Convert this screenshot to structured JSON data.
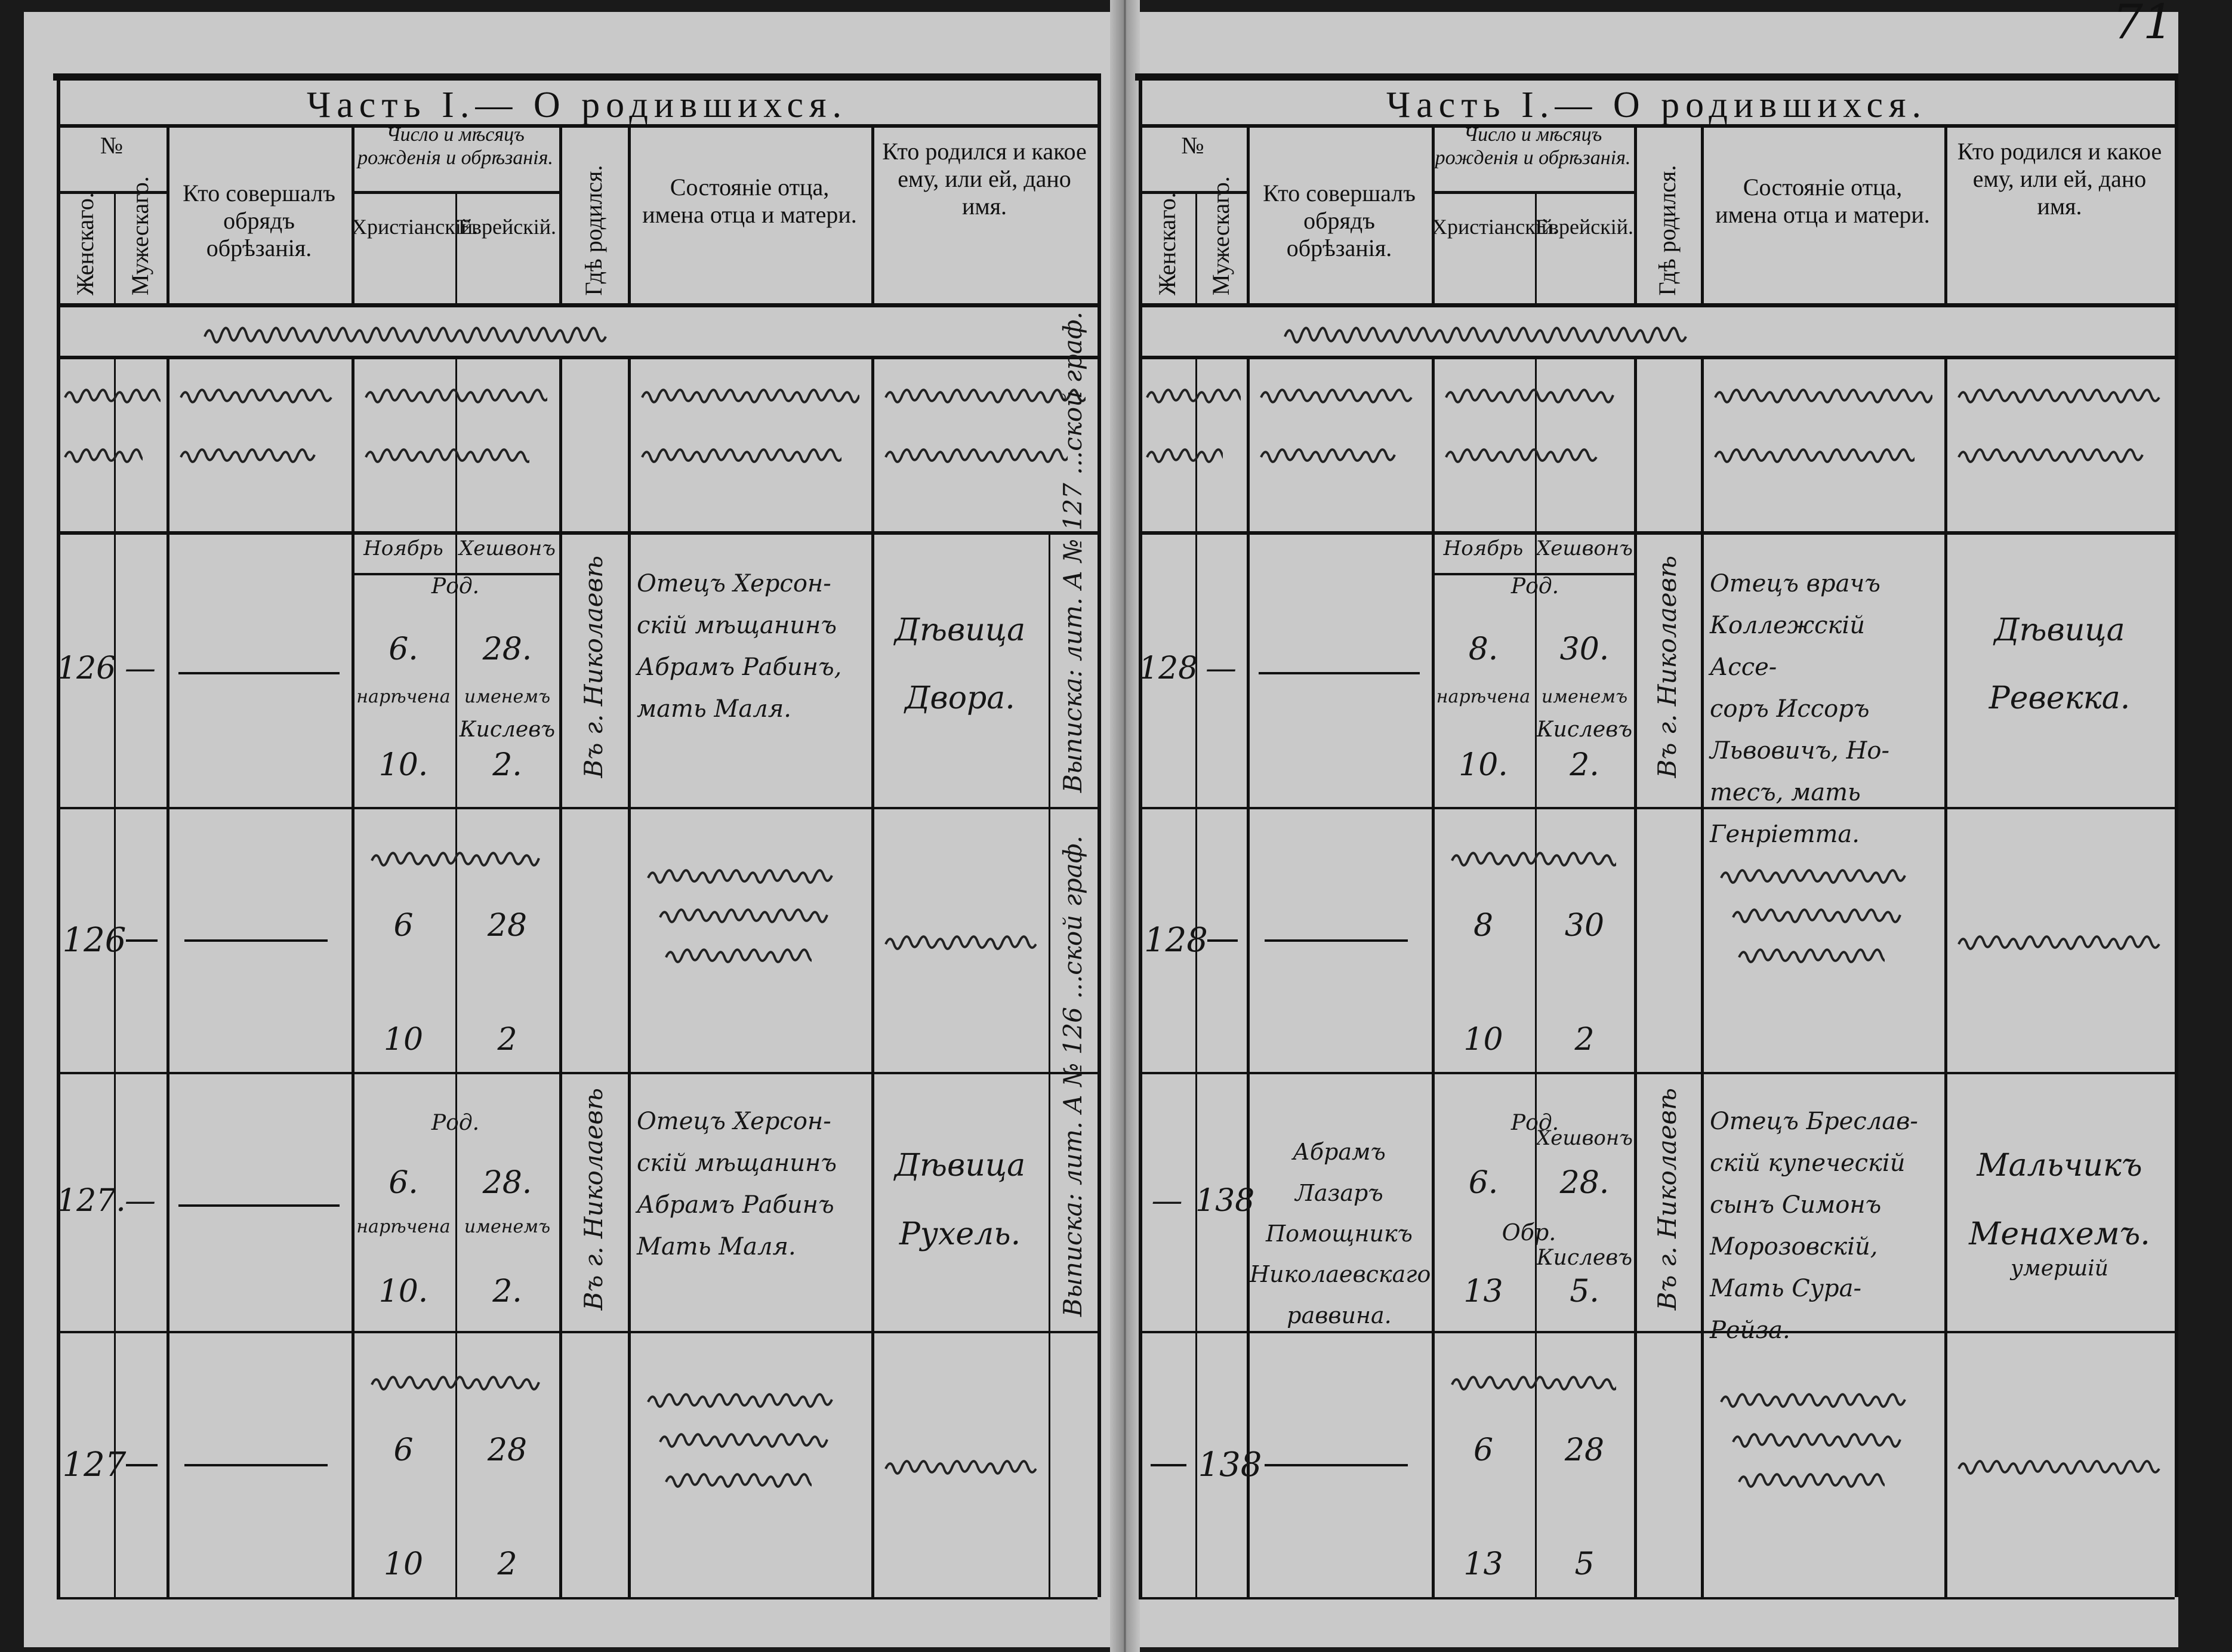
{
  "page_number": "71",
  "colors": {
    "paper": "#c9c9c9",
    "ink": "#111111",
    "background": "#1a1a1a"
  },
  "header": {
    "title": "Часть I.— О родившихся.",
    "no_label": "№",
    "female": "Женскаго.",
    "male": "Мужескаго.",
    "performer": "Кто совершалъ обрядъ обрѣзанія.",
    "dates": "Число и мѣсяцъ рожденія и обрѣзанія.",
    "christian": "Христіанскій.",
    "jewish": "Еврейскій.",
    "place": "Гдѣ родился.",
    "parents": "Состояніе отца, имена отца и матери.",
    "child": "Кто родился и какое ему, или ей, дано имя."
  },
  "pages": [
    {
      "records": [
        {
          "female": "126",
          "male": "—",
          "performer": "—",
          "month_christian": "Ноябрь",
          "month_jewish": "Хешвонъ",
          "birth_label": "Род.",
          "birth_christian": "6.",
          "birth_jewish": "28.",
          "naming_christian": "нарѣчена",
          "naming_jewish": "именемъ",
          "circ_month_jewish": "Кислевъ",
          "circ_christian": "10.",
          "circ_jewish": "2.",
          "place": "Въ г. Николаевѣ",
          "parents": "Отецъ Херсон-\nскій мѣщанинъ\nАбрамъ Рабинъ,\nмать Маля.",
          "child": "Дѣвица\nДвора.",
          "note": "Выписка: лит. А № 127 ...ской граф."
        },
        {
          "female": "127.",
          "male": "—",
          "performer": "—",
          "birth_label": "Род.",
          "birth_christian": "6.",
          "birth_jewish": "28.",
          "naming_christian": "нарѣчена",
          "naming_jewish": "именемъ",
          "circ_christian": "10.",
          "circ_jewish": "2.",
          "place": "Въ г. Николаевѣ",
          "parents": "Отецъ Херсон-\nскій мѣщанинъ\nАбрамъ Рабинъ\nМать Маля.",
          "child": "Дѣвица\nРухель.",
          "note": "Выписка: лит. А № 126 ...ской граф."
        }
      ],
      "hebrew_rows": [
        {
          "number": "126",
          "dates": [
            "6",
            "28",
            "10",
            "2"
          ]
        },
        {
          "number": "127",
          "dates": [
            "6",
            "28",
            "10",
            "2"
          ]
        }
      ]
    },
    {
      "records": [
        {
          "female": "128",
          "male": "—",
          "performer": "—",
          "month_christian": "Ноябрь",
          "month_jewish": "Хешвонъ",
          "birth_label": "Род.",
          "birth_christian": "8.",
          "birth_jewish": "30.",
          "naming_christian": "нарѣчена",
          "naming_jewish": "именемъ",
          "circ_month_jewish": "Кислевъ",
          "circ_christian": "10.",
          "circ_jewish": "2.",
          "place": "Въ г. Николаевѣ",
          "parents": "Отецъ врачъ\nКоллежскій Ассе-\nсоръ Иссоръ\nЛьвовичъ, Но-\nтесъ, мать\nГенріетта.",
          "child": "Дѣвица\nРевекка."
        },
        {
          "female": "—",
          "male": "138",
          "performer": "Абрамъ Лазаръ\nПомощникъ\nНиколаевскаго\nраввина.",
          "month_jewish": "Хешвонъ",
          "birth_label": "Род.",
          "birth_christian": "6.",
          "birth_jewish": "28.",
          "circ_label": "Обр.",
          "circ_month_jewish": "Кислевъ",
          "circ_christian": "13",
          "circ_jewish": "5.",
          "place": "Въ г. Николаевѣ",
          "parents": "Отецъ Бреслав-\nскій купеческій\nсынъ Симонъ\nМорозовскій,\nМать Сура-\nРейза.",
          "child": "Мальчикъ\nМенахемъ.",
          "child_note": "умершій"
        }
      ],
      "hebrew_rows": [
        {
          "number": "128",
          "dates": [
            "8",
            "30",
            "10",
            "2"
          ]
        },
        {
          "number": "138",
          "dates": [
            "6",
            "28",
            "13",
            "5"
          ]
        }
      ]
    }
  ]
}
